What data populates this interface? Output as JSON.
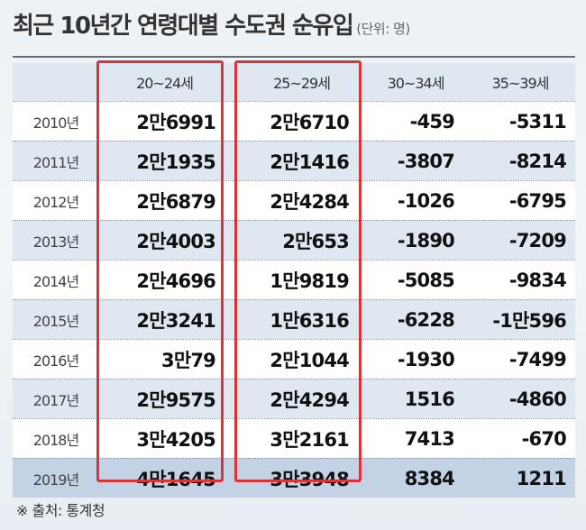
{
  "title": "최근 10년간 연령대별 수도권 순유입",
  "unit_note": "(단위: 명)",
  "source": "※ 출처: 통계청",
  "colors": {
    "highlight_border": "#d9343a",
    "stripe": "#dfe7f0",
    "last_row": "#c4d2e6"
  },
  "chart_data": {
    "type": "table",
    "columns": [
      "",
      "20~24세",
      "25~29세",
      "30~34세",
      "35~39세"
    ],
    "rows": [
      {
        "year": "2010년",
        "values": [
          "2만6991",
          "2만6710",
          "-459",
          "-5311"
        ]
      },
      {
        "year": "2011년",
        "values": [
          "2만1935",
          "2만1416",
          "-3807",
          "-8214"
        ]
      },
      {
        "year": "2012년",
        "values": [
          "2만6879",
          "2만4284",
          "-1026",
          "-6795"
        ]
      },
      {
        "year": "2013년",
        "values": [
          "2만4003",
          "2만653",
          "-1890",
          "-7209"
        ]
      },
      {
        "year": "2014년",
        "values": [
          "2만4696",
          "1만9819",
          "-5085",
          "-9834"
        ]
      },
      {
        "year": "2015년",
        "values": [
          "2만3241",
          "1만6316",
          "-6228",
          "-1만596"
        ]
      },
      {
        "year": "2016년",
        "values": [
          "3만79",
          "2만1044",
          "-1930",
          "-7499"
        ]
      },
      {
        "year": "2017년",
        "values": [
          "2만9575",
          "2만4294",
          "1516",
          "-4860"
        ]
      },
      {
        "year": "2018년",
        "values": [
          "3만4205",
          "3만2161",
          "7413",
          "-670"
        ]
      },
      {
        "year": "2019년",
        "values": [
          "4만1645",
          "3만3948",
          "8384",
          "1211"
        ]
      }
    ],
    "highlighted_columns": [
      "20~24세",
      "25~29세"
    ]
  }
}
